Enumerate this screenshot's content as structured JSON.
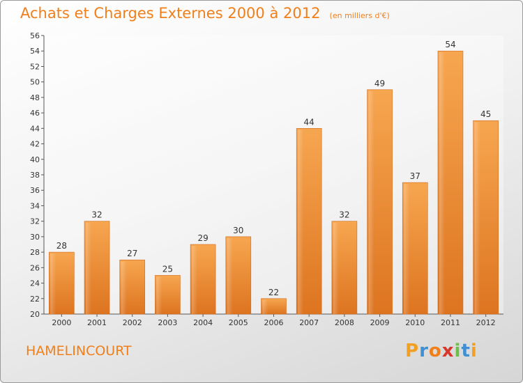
{
  "chart": {
    "title": "Achats et Charges Externes 2000 à 2012",
    "subtitle": "(en milliers d'€)"
  },
  "town": "HAMELINCOURT",
  "logo": {
    "letters": [
      "P",
      "r",
      "o",
      "x",
      "i",
      "t",
      "i"
    ],
    "colors": [
      "#f2a023",
      "#3f8fd2",
      "#f07f1a",
      "#d9362b",
      "#6fbe4a",
      "#3f8fd2",
      "#f2a023"
    ]
  },
  "chart_data": {
    "type": "bar",
    "title": "Achats et Charges Externes 2000 à 2012",
    "subtitle": "(en milliers d'€)",
    "categories": [
      "2000",
      "2001",
      "2002",
      "2003",
      "2004",
      "2005",
      "2006",
      "2007",
      "2008",
      "2009",
      "2010",
      "2011",
      "2012"
    ],
    "values": [
      28,
      32,
      27,
      25,
      29,
      30,
      22,
      44,
      32,
      49,
      37,
      54,
      45
    ],
    "ylim": [
      20,
      56
    ],
    "yticks": [
      20,
      22,
      24,
      26,
      28,
      30,
      32,
      34,
      36,
      38,
      40,
      42,
      44,
      46,
      48,
      50,
      52,
      54,
      56
    ],
    "grid": false,
    "bar_color": "#f0923a"
  }
}
